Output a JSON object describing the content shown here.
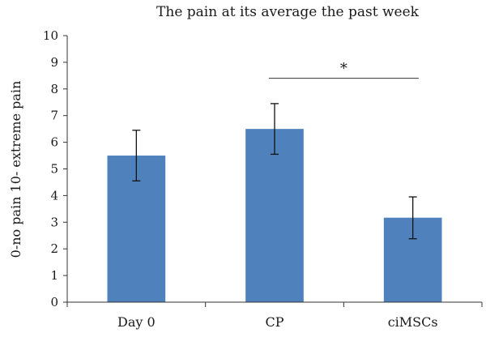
{
  "chart_data": {
    "type": "bar",
    "title": "The pain at its average the past week",
    "xlabel": "",
    "ylabel": "0-no pain 10- extreme pain",
    "categories": [
      "Day 0",
      "CP",
      "ciMSCs"
    ],
    "values": [
      5.5,
      6.5,
      3.17
    ],
    "error_low": [
      4.55,
      5.55,
      2.38
    ],
    "error_high": [
      6.45,
      7.45,
      3.95
    ],
    "ylim": [
      0,
      10
    ],
    "yticks": [
      0,
      1,
      2,
      3,
      4,
      5,
      6,
      7,
      8,
      9,
      10
    ],
    "bar_color": "#4f81bd",
    "grid": false,
    "significance": {
      "from": "CP",
      "to": "ciMSCs",
      "level": 8.4,
      "label": "*"
    }
  }
}
